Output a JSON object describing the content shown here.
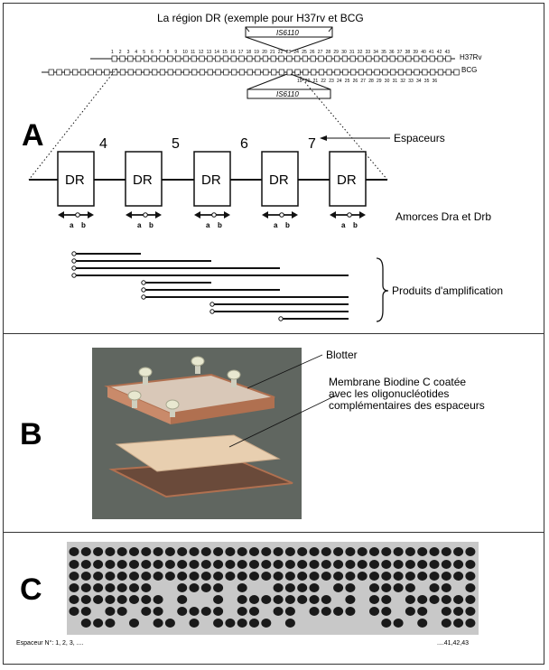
{
  "panel_a": {
    "letter": "A",
    "title": "La région DR (exemple pour H37rv et BCG",
    "is_label_top": "IS6110",
    "is_label_bottom": "IS6110",
    "strain_top": "H37Rv",
    "strain_bottom": "BCG",
    "spacer_numbers_top": [
      "1",
      "2",
      "3",
      "4",
      "5",
      "6",
      "7",
      "8",
      "9",
      "10",
      "11",
      "12",
      "13",
      "14",
      "15",
      "16",
      "17",
      "18",
      "19",
      "20",
      "21",
      "22",
      "23",
      "24",
      "25",
      "26",
      "27",
      "28",
      "29",
      "30",
      "31",
      "32",
      "33",
      "34",
      "35",
      "36",
      "37",
      "38",
      "39",
      "40",
      "41",
      "42",
      "43"
    ],
    "spacer_numbers_bottom": [
      "19",
      "20",
      "21",
      "22",
      "23",
      "24",
      "25",
      "26",
      "27",
      "28",
      "29",
      "30",
      "31",
      "32",
      "33",
      "34",
      "35",
      "36"
    ],
    "dr_label": "DR",
    "spacer_big_numbers": [
      "4",
      "5",
      "6",
      "7"
    ],
    "primer_a": "a",
    "primer_b": "b",
    "label_spacers": "Espaceurs",
    "label_primers": "Amorces Dra et Drb",
    "label_products": "Produits d'amplification"
  },
  "panel_b": {
    "letter": "B",
    "label_blotter": "Blotter",
    "label_membrane_1": "Membrane Biodine C coatée",
    "label_membrane_2": "avec les oligonucléotides",
    "label_membrane_3": "complémentaires des espaceurs"
  },
  "panel_c": {
    "letter": "C",
    "label_spacer_start": "Espaceur N°:  1, 2, 3, ....",
    "label_spacer_end": "....41,42,43"
  },
  "colors": {
    "line": "#111111",
    "blot_bg": "#c8c8c8",
    "spot": "#1a1a1a",
    "blotter_plate": "#c98a6a",
    "membrane": "#e8cfb0"
  }
}
